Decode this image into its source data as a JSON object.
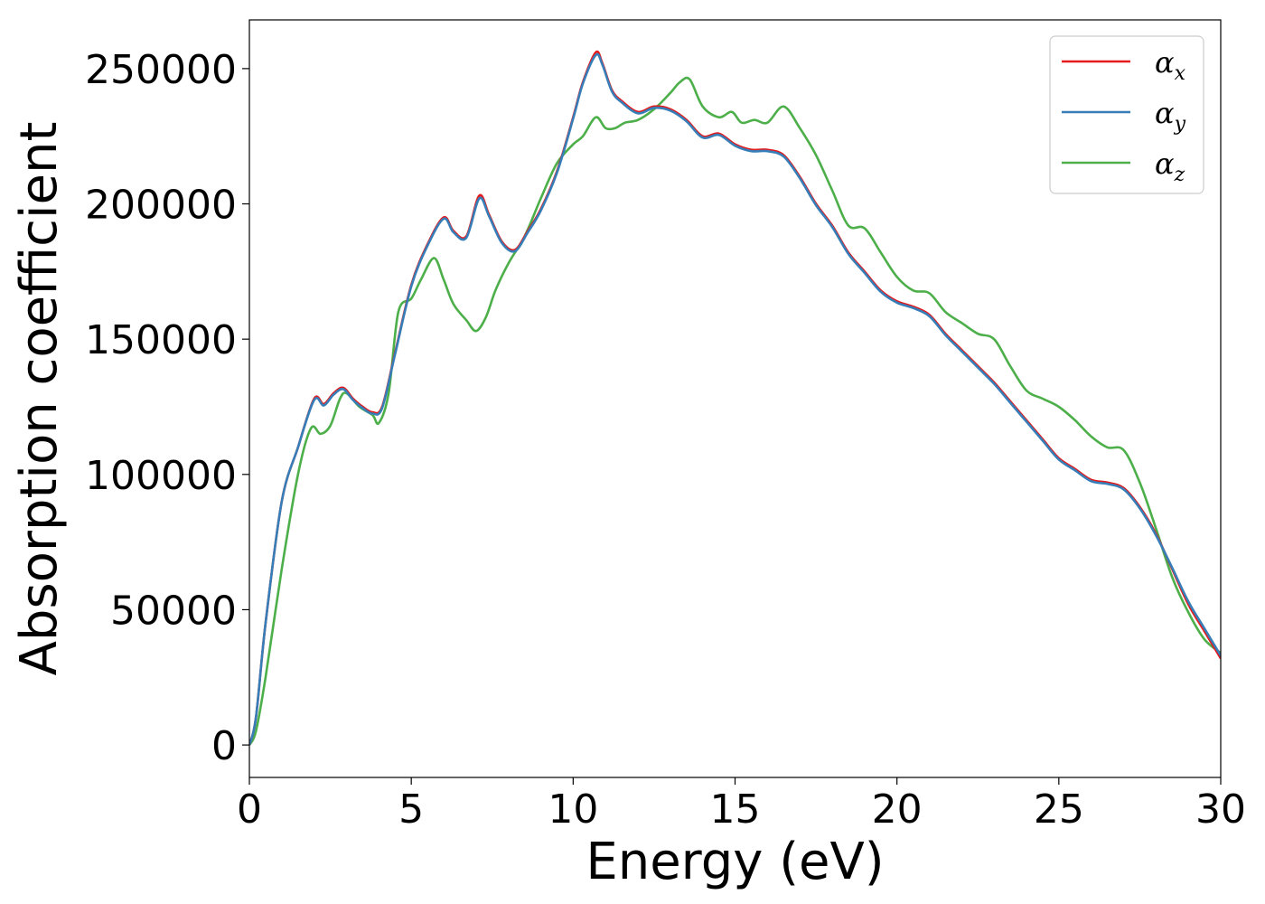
{
  "chart_data": {
    "type": "line",
    "title": "",
    "xlabel": "Energy (eV)",
    "ylabel": "Absorption coefficient",
    "xlim": [
      0,
      30
    ],
    "ylim": [
      -12000,
      268000
    ],
    "xticks": [
      0,
      5,
      10,
      15,
      20,
      25,
      30
    ],
    "yticks": [
      0,
      50000,
      100000,
      150000,
      200000,
      250000
    ],
    "grid": false,
    "legend_position": "top-right",
    "series": [
      {
        "name": "α",
        "subscript": "x",
        "color": "#e41a1c",
        "x": [
          0,
          0.2,
          0.5,
          1.0,
          1.5,
          2.0,
          2.3,
          2.6,
          2.9,
          3.2,
          3.5,
          3.8,
          4.1,
          4.5,
          5.0,
          5.5,
          6.0,
          6.3,
          6.7,
          7.1,
          7.4,
          7.8,
          8.2,
          8.6,
          9.0,
          9.5,
          10.0,
          10.3,
          10.7,
          10.9,
          11.2,
          11.5,
          12.0,
          12.5,
          13.0,
          13.5,
          14.0,
          14.5,
          15.0,
          15.5,
          16.0,
          16.5,
          17.0,
          17.5,
          18.0,
          18.5,
          19.0,
          19.5,
          20.0,
          20.5,
          21.0,
          21.5,
          22.0,
          22.5,
          23.0,
          23.5,
          24.0,
          24.5,
          25.0,
          25.5,
          26.0,
          26.5,
          27.0,
          27.5,
          28.0,
          28.5,
          29.0,
          29.5,
          30.0
        ],
        "values": [
          0,
          10000,
          45000,
          90000,
          110000,
          128000,
          126000,
          130000,
          132000,
          128000,
          125000,
          123000,
          125000,
          145000,
          170000,
          185000,
          195000,
          190000,
          188000,
          203000,
          196000,
          186000,
          183000,
          190000,
          198000,
          212000,
          232000,
          245000,
          256000,
          252000,
          242000,
          238000,
          234000,
          236000,
          235000,
          231000,
          225000,
          226000,
          222000,
          220000,
          220000,
          218000,
          210000,
          200000,
          192000,
          182000,
          175000,
          168000,
          164000,
          162000,
          159000,
          152000,
          146000,
          140000,
          134000,
          127000,
          120000,
          113000,
          106000,
          102000,
          98000,
          97000,
          95000,
          88000,
          78000,
          65000,
          52000,
          42000,
          32000
        ]
      },
      {
        "name": "α",
        "subscript": "y",
        "color": "#377eb8",
        "x": [
          0,
          0.2,
          0.5,
          1.0,
          1.5,
          2.0,
          2.3,
          2.6,
          2.9,
          3.2,
          3.5,
          3.8,
          4.1,
          4.5,
          5.0,
          5.5,
          6.0,
          6.3,
          6.7,
          7.1,
          7.4,
          7.8,
          8.2,
          8.6,
          9.0,
          9.5,
          10.0,
          10.3,
          10.7,
          10.9,
          11.2,
          11.5,
          12.0,
          12.5,
          13.0,
          13.5,
          14.0,
          14.5,
          15.0,
          15.5,
          16.0,
          16.5,
          17.0,
          17.5,
          18.0,
          18.5,
          19.0,
          19.5,
          20.0,
          20.5,
          21.0,
          21.5,
          22.0,
          22.5,
          23.0,
          23.5,
          24.0,
          24.5,
          25.0,
          25.5,
          26.0,
          26.5,
          27.0,
          27.5,
          28.0,
          28.5,
          29.0,
          29.5,
          30.0
        ],
        "values": [
          0,
          10000,
          45000,
          90000,
          110000,
          127500,
          125500,
          129500,
          131500,
          127500,
          124500,
          122500,
          124500,
          144500,
          169500,
          184500,
          194500,
          189500,
          187500,
          202000,
          195500,
          185500,
          182500,
          189500,
          197500,
          211500,
          231500,
          244500,
          255000,
          251500,
          241500,
          237500,
          233500,
          235500,
          234500,
          230500,
          224500,
          225500,
          221500,
          219500,
          219500,
          217500,
          209500,
          199500,
          191500,
          181500,
          174500,
          167500,
          163500,
          161500,
          158500,
          151500,
          145500,
          139500,
          133500,
          126500,
          119500,
          112500,
          105500,
          101500,
          97500,
          96500,
          94500,
          87500,
          77500,
          65500,
          53000,
          43000,
          33000
        ]
      },
      {
        "name": "α",
        "subscript": "z",
        "color": "#4daf4a",
        "x": [
          0,
          0.2,
          0.5,
          1.0,
          1.5,
          1.9,
          2.2,
          2.5,
          2.8,
          3.0,
          3.4,
          3.8,
          4.0,
          4.3,
          4.6,
          5.0,
          5.3,
          5.7,
          6.0,
          6.3,
          6.7,
          7.0,
          7.3,
          7.6,
          8.0,
          8.5,
          9.0,
          9.5,
          10.0,
          10.3,
          10.7,
          11.0,
          11.3,
          11.6,
          12.0,
          12.5,
          13.0,
          13.3,
          13.6,
          14.0,
          14.5,
          14.9,
          15.2,
          15.6,
          16.0,
          16.5,
          17.0,
          17.5,
          18.0,
          18.5,
          19.0,
          19.5,
          20.0,
          20.5,
          21.0,
          21.5,
          22.0,
          22.5,
          23.0,
          23.5,
          24.0,
          24.5,
          25.0,
          25.5,
          26.0,
          26.5,
          27.0,
          27.5,
          28.0,
          28.5,
          29.0,
          29.5,
          30.0
        ],
        "values": [
          0,
          5000,
          25000,
          65000,
          100000,
          117000,
          115000,
          118000,
          128000,
          130000,
          125000,
          122000,
          119000,
          130000,
          160000,
          165000,
          172000,
          180000,
          172000,
          163000,
          157000,
          153000,
          158000,
          168000,
          178000,
          188000,
          202000,
          215000,
          222000,
          225000,
          232000,
          228000,
          228000,
          230000,
          231000,
          235000,
          241000,
          245000,
          246000,
          236000,
          232000,
          234000,
          230000,
          231000,
          230000,
          236000,
          228000,
          218000,
          205000,
          192000,
          191000,
          182000,
          173000,
          168000,
          167000,
          160000,
          156000,
          152000,
          150000,
          140000,
          131000,
          128000,
          125000,
          120000,
          114000,
          110000,
          109000,
          97000,
          80000,
          62000,
          49000,
          39000,
          34000
        ]
      }
    ]
  }
}
